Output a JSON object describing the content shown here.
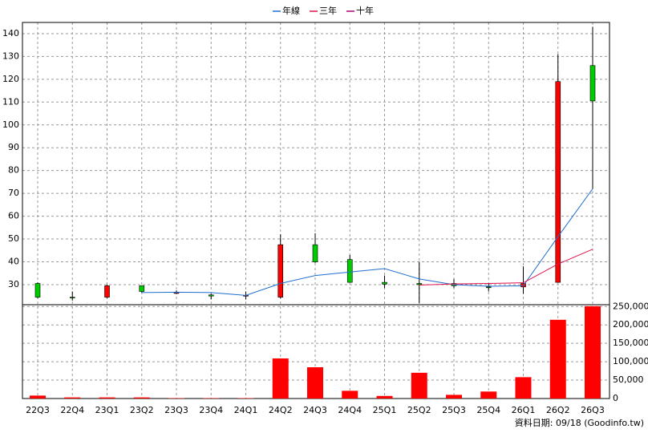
{
  "chart_data": {
    "type": "candlestick",
    "categories": [
      "22Q3",
      "22Q4",
      "23Q1",
      "23Q2",
      "23Q3",
      "23Q4",
      "24Q1",
      "24Q2",
      "24Q3",
      "24Q4",
      "25Q1",
      "25Q2",
      "25Q3",
      "25Q4",
      "26Q1",
      "26Q2",
      "26Q3"
    ],
    "candles": {
      "open": [
        30.5,
        24.5,
        24.5,
        29.5,
        26.5,
        25.5,
        25,
        24.5,
        47.5,
        41,
        31,
        30.5,
        30.5,
        29,
        29,
        31,
        126
      ],
      "high": [
        31,
        27,
        30,
        29.5,
        27.5,
        26,
        27,
        52,
        52.5,
        43,
        34,
        40,
        32.5,
        30.5,
        38,
        131,
        143
      ],
      "low": [
        24,
        23,
        24,
        26.5,
        26,
        23.5,
        23.5,
        24,
        39.5,
        31,
        28.5,
        22,
        28.5,
        27,
        26,
        31,
        72
      ],
      "close": [
        24.5,
        24.3,
        29.5,
        27,
        26.5,
        25,
        25.3,
        47.5,
        40,
        31,
        30.2,
        30,
        29.5,
        28.7,
        30.5,
        119,
        110.5
      ],
      "up_color": "#ff0000",
      "down_color": "#00cc00"
    },
    "series": [
      {
        "name": "年線",
        "color": "#1f6fd0",
        "values": [
          null,
          null,
          null,
          26.5,
          26.7,
          26.5,
          25.3,
          30.5,
          34,
          35.5,
          37,
          32.5,
          30,
          29.3,
          29.5,
          51,
          72
        ]
      },
      {
        "name": "三年",
        "color": "#e0104a",
        "values": [
          null,
          null,
          null,
          null,
          null,
          null,
          null,
          null,
          null,
          null,
          null,
          29.8,
          30.3,
          30.5,
          30.8,
          39,
          45.5
        ]
      },
      {
        "name": "十年",
        "color": "#b00070",
        "values": [
          null,
          null,
          null,
          null,
          null,
          null,
          null,
          null,
          null,
          null,
          null,
          null,
          null,
          null,
          null,
          null,
          null
        ]
      }
    ],
    "ylim": [
      21.2,
      144.9
    ],
    "yticks": [
      30,
      40,
      50,
      60,
      70,
      80,
      90,
      100,
      110,
      120,
      130,
      140
    ],
    "volume": {
      "color": "#ff0000",
      "values": [
        8000,
        3000,
        3000,
        3000,
        1000,
        1000,
        1000,
        109000,
        85000,
        21000,
        7000,
        70000,
        10000,
        19000,
        58000,
        214000,
        251000
      ],
      "ylim": [
        0,
        255000
      ],
      "yticks": [
        0,
        {
          "value": 50000,
          "label": "50,000"
        },
        {
          "value": 100000,
          "label": "100,000"
        },
        {
          "value": 150000,
          "label": "150,000"
        },
        {
          "value": 200000,
          "label": "200,000"
        },
        {
          "value": 250000,
          "label": "250,000"
        }
      ]
    },
    "grid": true,
    "footnote": "資料日期: 09/18 (Goodinfo.tw)"
  }
}
